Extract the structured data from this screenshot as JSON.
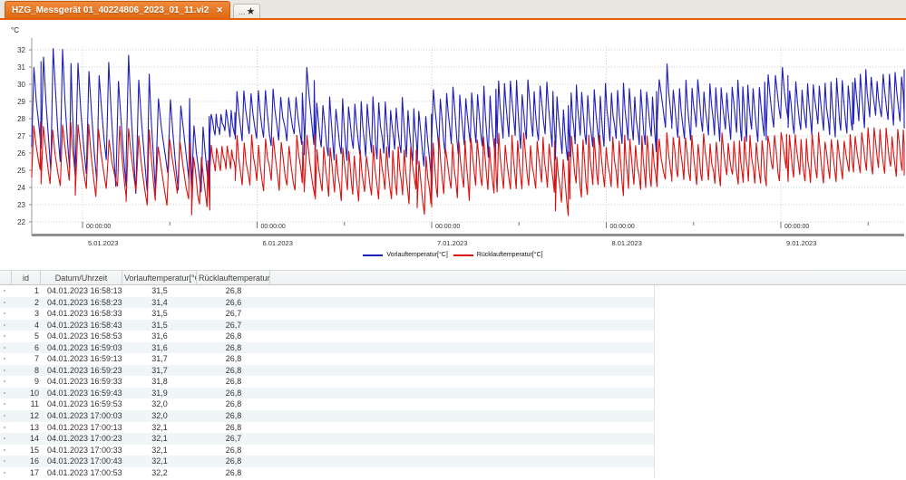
{
  "colors": {
    "accent_orange": "#e2600a",
    "tab_orange": "#e8741f",
    "vorlauf_blue": "#2020b8",
    "ruecklauf_red": "#d81414",
    "grid_gray": "#cccccc",
    "axis_gray": "#8f8f8f",
    "stripe_blue": "#f0f5f8"
  },
  "tabs": [
    {
      "title": "HZG_Messgerät 01_40224806_2023_01_11.vi2",
      "close_glyph": "✕",
      "active": true
    },
    {
      "label": "...",
      "star_glyph": "★",
      "active": false
    }
  ],
  "chart_data": {
    "type": "line",
    "title": "",
    "y_unit": "°C",
    "ylim": [
      22,
      32.6
    ],
    "yticks": [
      22,
      23,
      24,
      25,
      26,
      27,
      28,
      29,
      30,
      31,
      32
    ],
    "time_label": "00:00:00",
    "days": [
      "5.01.2023",
      "6.01.2023",
      "7.01.2023",
      "8.01.2023",
      "9.01.2023"
    ],
    "midnight_hours": [
      7,
      31,
      55,
      79,
      103
    ],
    "noon_hours": [
      19,
      43,
      67,
      91,
      115
    ],
    "hours_span": [
      0,
      120.3
    ],
    "grid": "dotted",
    "legend_position": "bottom-center",
    "series": [
      {
        "name": "Vorlauftemperatur[°C]",
        "color": "#2020b8",
        "seed": 42,
        "envelope_segments": [
          [
            0,
            1.3,
            25.3,
            32.3,
            1.3
          ],
          [
            1.3,
            6,
            24.6,
            32.1,
            1.25
          ],
          [
            6,
            13,
            23.9,
            31.8,
            1.4
          ],
          [
            13,
            17,
            23.6,
            31.9,
            1.5
          ],
          [
            17,
            22,
            23.3,
            30.0,
            1.5
          ],
          [
            22,
            24.5,
            23.6,
            28.6,
            1.2
          ],
          [
            24.5,
            28,
            26.9,
            28.6,
            0.7
          ],
          [
            28,
            37.5,
            26.3,
            29.9,
            1.0
          ],
          [
            37.5,
            39,
            25.8,
            31.2,
            1.5
          ],
          [
            39,
            53,
            25.5,
            29.3,
            0.85
          ],
          [
            53,
            55,
            24.2,
            29.0,
            1.0
          ],
          [
            55,
            64,
            25.6,
            30.0,
            0.9
          ],
          [
            64,
            72,
            26.2,
            30.3,
            0.85
          ],
          [
            72,
            74,
            24.9,
            29.5,
            0.9
          ],
          [
            74,
            86,
            26.0,
            30.1,
            0.8
          ],
          [
            86,
            88,
            26.5,
            31.3,
            1.0
          ],
          [
            88,
            101,
            26.6,
            30.3,
            0.8
          ],
          [
            101,
            104,
            27.0,
            31.5,
            0.9
          ],
          [
            104,
            113,
            26.9,
            30.4,
            0.8
          ],
          [
            113,
            120.3,
            27.3,
            30.9,
            0.8
          ]
        ]
      },
      {
        "name": "Rücklauftemperatur[°C]",
        "color": "#d81414",
        "seed": 1337,
        "envelope_segments": [
          [
            0,
            1.3,
            24.4,
            28.3,
            1.3
          ],
          [
            1.3,
            6,
            24.0,
            27.9,
            1.25
          ],
          [
            6,
            13,
            23.3,
            27.7,
            1.4
          ],
          [
            13,
            17,
            22.9,
            27.6,
            1.5
          ],
          [
            17,
            22,
            22.8,
            27.2,
            1.5
          ],
          [
            22,
            24.5,
            22.2,
            26.2,
            1.2
          ],
          [
            24.5,
            28,
            24.9,
            26.5,
            0.7
          ],
          [
            28,
            37.5,
            23.7,
            27.1,
            1.0
          ],
          [
            37.5,
            39,
            23.4,
            27.7,
            1.5
          ],
          [
            39,
            53,
            23.0,
            26.6,
            0.85
          ],
          [
            53,
            55,
            22.2,
            26.3,
            1.0
          ],
          [
            55,
            64,
            23.2,
            27.0,
            0.9
          ],
          [
            64,
            72,
            23.6,
            27.2,
            0.85
          ],
          [
            72,
            74,
            22.3,
            26.5,
            0.9
          ],
          [
            74,
            86,
            23.4,
            27.1,
            0.8
          ],
          [
            86,
            88,
            23.8,
            27.6,
            1.0
          ],
          [
            88,
            101,
            24.0,
            27.2,
            0.8
          ],
          [
            101,
            104,
            24.3,
            27.6,
            0.9
          ],
          [
            104,
            113,
            24.2,
            27.3,
            0.8
          ],
          [
            113,
            120.3,
            24.6,
            27.5,
            0.8
          ]
        ]
      }
    ]
  },
  "table": {
    "columns": [
      "id",
      "Datum/Uhrzeit",
      "Vorlauftemperatur[°C]",
      "Rücklauftemperatur[°C]"
    ],
    "rows": [
      [
        "1",
        "04.01.2023 16:58:13",
        "31,5",
        "26,8"
      ],
      [
        "2",
        "04.01.2023 16:58:23",
        "31,4",
        "26,6"
      ],
      [
        "3",
        "04.01.2023 16:58:33",
        "31,5",
        "26,7"
      ],
      [
        "4",
        "04.01.2023 16:58:43",
        "31,5",
        "26,7"
      ],
      [
        "5",
        "04.01.2023 16:58:53",
        "31,6",
        "26,8"
      ],
      [
        "6",
        "04.01.2023 16:59:03",
        "31,6",
        "26,8"
      ],
      [
        "7",
        "04.01.2023 16:59:13",
        "31,7",
        "26,8"
      ],
      [
        "8",
        "04.01.2023 16:59:23",
        "31,7",
        "26,8"
      ],
      [
        "9",
        "04.01.2023 16:59:33",
        "31,8",
        "26,8"
      ],
      [
        "10",
        "04.01.2023 16:59:43",
        "31,9",
        "26,8"
      ],
      [
        "11",
        "04.01.2023 16:59:53",
        "32,0",
        "26,8"
      ],
      [
        "12",
        "04.01.2023 17:00:03",
        "32,0",
        "26,8"
      ],
      [
        "13",
        "04.01.2023 17:00:13",
        "32,1",
        "26,8"
      ],
      [
        "14",
        "04.01.2023 17:00:23",
        "32,1",
        "26,7"
      ],
      [
        "15",
        "04.01.2023 17:00:33",
        "32,1",
        "26,8"
      ],
      [
        "16",
        "04.01.2023 17:00:43",
        "32,1",
        "26,8"
      ],
      [
        "17",
        "04.01.2023 17:00:53",
        "32,2",
        "26,8"
      ]
    ]
  }
}
